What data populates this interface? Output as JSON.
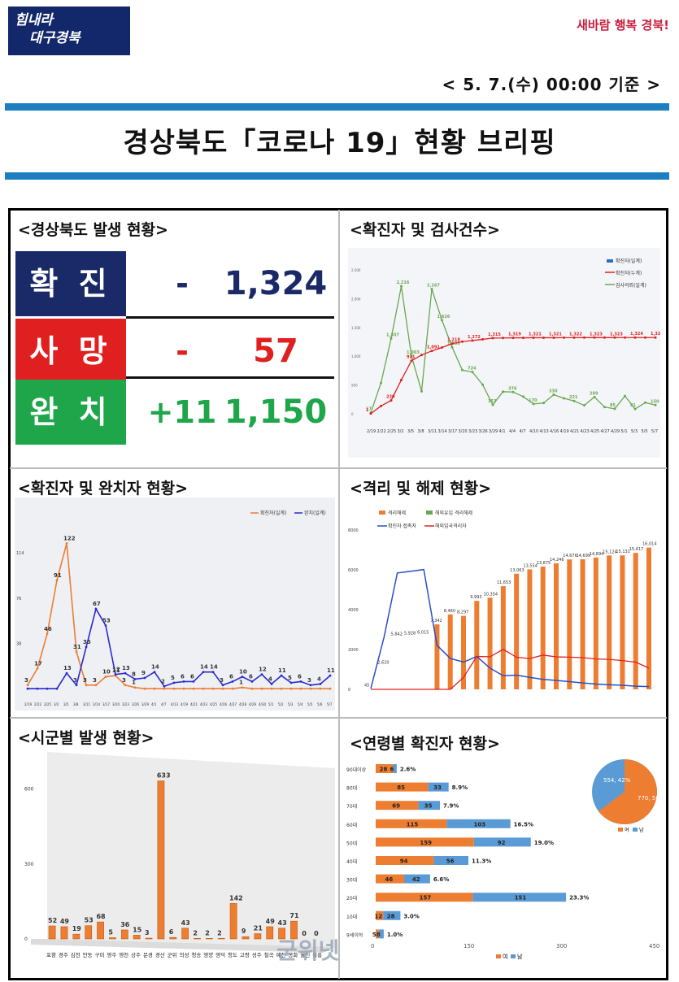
{
  "header": {
    "logo_left_line1": "힘내라",
    "logo_left_line2": "대구경북",
    "logo_right": "새바람 행복 경북!",
    "date": "< 5. 7.(수) 00:00 기준 >",
    "title": "경상북도「코로나 19」현황 브리핑"
  },
  "colors": {
    "blue_rule": "#1c7fc0",
    "navy": "#1a2a68",
    "red": "#e02020",
    "green": "#1fa64a",
    "orange": "#ed7d31",
    "blue_series": "#2a4fc4",
    "lightblue": "#5b9bd5"
  },
  "section_outbreak": {
    "title": "<경상북도 발생 현황>",
    "rows": [
      {
        "label": "확 진",
        "delta": "-",
        "value": "1,324"
      },
      {
        "label": "사 망",
        "delta": "-",
        "value": "57"
      },
      {
        "label": "완 치",
        "delta": "+11",
        "value": "1,150"
      }
    ]
  },
  "section_tests": {
    "title": "<확진자 및 검사건수>",
    "legend": [
      "확진자(일계)",
      "확진자(누계)",
      "검사의뢰(일계)"
    ]
  },
  "section_recovered": {
    "title": "<확진자 및 완치자 현황>",
    "legend": [
      "확진자(일계)",
      "완치(일계)"
    ]
  },
  "section_isolation": {
    "title": "<격리 및 해제 현황>",
    "legend": [
      "격리해제",
      "해외유입 격리해제",
      "확진자 접촉자",
      "해외입국격리자"
    ]
  },
  "section_cities": {
    "title": "<시군별 발생 현황>"
  },
  "section_age": {
    "title": "<연령별 확진자 현황>",
    "legend": [
      "여",
      "남"
    ],
    "pie": {
      "male": "554, 42%",
      "female": "770, 58%"
    }
  },
  "chart_data": [
    {
      "type": "line",
      "title": "",
      "x": [
        "2/19",
        "2/22",
        "2/25",
        "3/2",
        "3/5",
        "3/8",
        "3/11",
        "3/14",
        "3/17",
        "3/20",
        "3/23",
        "3/26",
        "3/29",
        "4/1",
        "4/4",
        "4/7",
        "4/10",
        "4/13",
        "4/16",
        "4/19",
        "4/21",
        "4/23",
        "4/25",
        "4/27",
        "4/29",
        "5/1",
        "5/3",
        "5/5",
        "5/7"
      ],
      "series": [
        {
          "name": "검사의뢰(일계)",
          "values": [
            17,
            534,
            1307,
            2216,
            1003,
            388,
            2167,
            1626,
            1156,
            758,
            724,
            506,
            153,
            382,
            376,
            296,
            170,
            185,
            330,
            267,
            221,
            144,
            289,
            114,
            85,
            307,
            81,
            193,
            150
          ]
        },
        {
          "name": "확진자(누계)",
          "values": [
            1,
            133,
            230,
            586,
            921,
            1021,
            1091,
            1150,
            1218,
            1253,
            1272,
            1293,
            1315,
            1317,
            1319,
            1319,
            1321,
            1321,
            1321,
            1322,
            1322,
            1323,
            1323,
            1323,
            1323,
            1324,
            1324,
            1324,
            1324
          ]
        }
      ],
      "ylim": [
        -200,
        2600
      ]
    },
    {
      "type": "line",
      "title": "",
      "x": [
        "2/19",
        "2/22",
        "2/25",
        "3/2",
        "3/5",
        "3/8",
        "3/11",
        "3/14",
        "3/17",
        "3/20",
        "3/23",
        "3/26",
        "3/29",
        "4/1",
        "4/7",
        "4/13",
        "4/19",
        "4/21",
        "4/23",
        "4/25",
        "4/26",
        "4/27",
        "4/28",
        "4/29",
        "4/30",
        "5/1",
        "5/2",
        "5/3",
        "5/4",
        "5/5",
        "5/6",
        "5/7"
      ],
      "series": [
        {
          "name": "확진자(일계)",
          "values": [
            3,
            17,
            46,
            91,
            122,
            31,
            3,
            3,
            10,
            11,
            3,
            1,
            0,
            0,
            0,
            0,
            0,
            0,
            0,
            0,
            0,
            0,
            1,
            0,
            0,
            0,
            0,
            0,
            0,
            0,
            0,
            0
          ]
        },
        {
          "name": "완치(일계)",
          "values": [
            0,
            0,
            0,
            0,
            13,
            3,
            35,
            67,
            53,
            12,
            13,
            8,
            9,
            14,
            2,
            5,
            6,
            6,
            14,
            14,
            3,
            6,
            10,
            6,
            12,
            4,
            11,
            5,
            6,
            3,
            4,
            11
          ]
        }
      ]
    },
    {
      "type": "bar",
      "title": "",
      "categories": [
        "포항",
        "경주",
        "김천",
        "안동",
        "구미",
        "영주",
        "영천",
        "상주",
        "문경",
        "경산",
        "군위",
        "의성",
        "청송",
        "영양",
        "영덕",
        "청도",
        "고령",
        "성주",
        "칠곡",
        "예천",
        "봉화",
        "울진",
        "울릉"
      ],
      "values": [
        52,
        49,
        19,
        53,
        68,
        5,
        36,
        15,
        3,
        633,
        6,
        43,
        2,
        2,
        2,
        142,
        9,
        21,
        49,
        43,
        71,
        0,
        0
      ],
      "ylim": [
        0,
        700
      ]
    },
    {
      "type": "bar",
      "title": "",
      "categories": [
        "90대이상",
        "80대",
        "70대",
        "60대",
        "50대",
        "40대",
        "30대",
        "20대",
        "10대",
        "9세이하"
      ],
      "series": [
        {
          "name": "여",
          "values": [
            28,
            85,
            69,
            115,
            159,
            94,
            46,
            157,
            12,
            5
          ]
        },
        {
          "name": "남",
          "values": [
            6,
            33,
            35,
            103,
            92,
            56,
            42,
            151,
            28,
            8
          ]
        }
      ],
      "percent_labels": [
        "2.6%",
        "8.9%",
        "7.9%",
        "16.5%",
        "19.0%",
        "11.3%",
        "6.6%",
        "23.3%",
        "3.0%",
        "1.0%"
      ],
      "xlim": [
        0,
        450
      ]
    }
  ],
  "isolation_labels": [
    "45",
    "2,620",
    "5,842",
    "5,928",
    "6,015",
    "7,342",
    "8,460",
    "8,297",
    "9,993",
    "10,354",
    "11,653",
    "13,063",
    "13,554",
    "13,875",
    "14,246",
    "14,676",
    "14,699",
    "14,894",
    "15,124",
    "15,131",
    "15,417",
    "16,014"
  ],
  "watermark": "군위넷"
}
